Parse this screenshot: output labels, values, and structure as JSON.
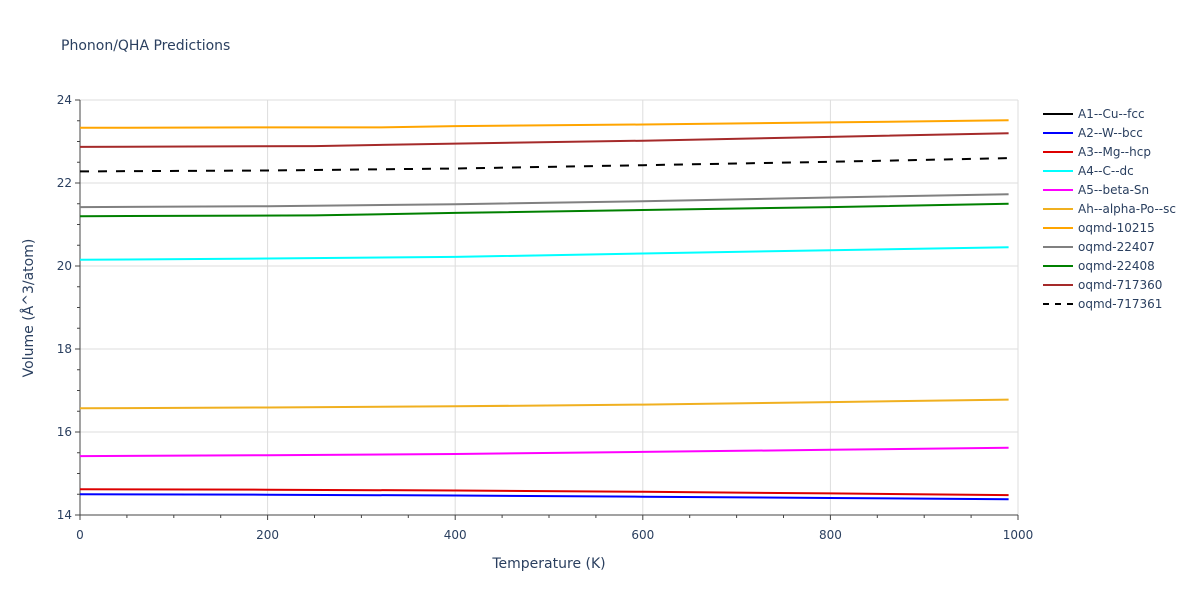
{
  "chart_data": {
    "type": "line",
    "title": "Phonon/QHA Predictions",
    "xlabel": "Temperature (K)",
    "ylabel": "Volume (Å^3/atom)",
    "xlim": [
      0,
      1000
    ],
    "ylim": [
      14,
      24
    ],
    "xticks": [
      0,
      200,
      400,
      600,
      800,
      1000
    ],
    "yticks": [
      14,
      16,
      18,
      20,
      22,
      24
    ],
    "grid": true,
    "legend_position": "right",
    "series": [
      {
        "name": "A1--Cu--fcc",
        "color": "#000000",
        "dash": "solid",
        "x": [],
        "y": []
      },
      {
        "name": "A2--W--bcc",
        "color": "#0000ff",
        "dash": "solid",
        "x": [
          0,
          200,
          400,
          600,
          800,
          990
        ],
        "y": [
          14.5,
          14.49,
          14.47,
          14.44,
          14.41,
          14.38
        ]
      },
      {
        "name": "A3--Mg--hcp",
        "color": "#dd0000",
        "dash": "solid",
        "x": [
          0,
          200,
          400,
          600,
          800,
          990
        ],
        "y": [
          14.62,
          14.61,
          14.59,
          14.56,
          14.52,
          14.48
        ]
      },
      {
        "name": "A4--C--dc",
        "color": "#00ffff",
        "dash": "solid",
        "x": [
          0,
          200,
          400,
          600,
          800,
          990
        ],
        "y": [
          20.15,
          20.18,
          20.22,
          20.3,
          20.38,
          20.45
        ]
      },
      {
        "name": "A5--beta-Sn",
        "color": "#ff00ff",
        "dash": "solid",
        "x": [
          0,
          200,
          400,
          600,
          800,
          990
        ],
        "y": [
          15.42,
          15.44,
          15.47,
          15.52,
          15.57,
          15.62
        ]
      },
      {
        "name": "Ah--alpha-Po--sc",
        "color": "#f0b020",
        "dash": "solid",
        "x": [
          0,
          200,
          400,
          600,
          800,
          990
        ],
        "y": [
          16.57,
          16.59,
          16.62,
          16.66,
          16.72,
          16.78
        ]
      },
      {
        "name": "oqmd-10215",
        "color": "#ffa500",
        "dash": "solid",
        "x": [
          0,
          200,
          320,
          400,
          600,
          800,
          990
        ],
        "y": [
          23.33,
          23.34,
          23.34,
          23.37,
          23.41,
          23.46,
          23.51
        ]
      },
      {
        "name": "oqmd-22407",
        "color": "#808080",
        "dash": "solid",
        "x": [
          0,
          200,
          400,
          600,
          800,
          990
        ],
        "y": [
          21.42,
          21.44,
          21.49,
          21.56,
          21.65,
          21.73
        ]
      },
      {
        "name": "oqmd-22408",
        "color": "#008000",
        "dash": "solid",
        "x": [
          0,
          250,
          400,
          600,
          800,
          990
        ],
        "y": [
          21.2,
          21.22,
          21.28,
          21.35,
          21.42,
          21.5
        ]
      },
      {
        "name": "oqmd-717360",
        "color": "#a52a2a",
        "dash": "solid",
        "x": [
          0,
          250,
          400,
          600,
          800,
          990
        ],
        "y": [
          22.87,
          22.89,
          22.95,
          23.02,
          23.11,
          23.2
        ]
      },
      {
        "name": "oqmd-717361",
        "color": "#000000",
        "dash": "dash",
        "x": [
          0,
          200,
          400,
          600,
          800,
          990
        ],
        "y": [
          22.28,
          22.3,
          22.35,
          22.43,
          22.51,
          22.6
        ]
      }
    ]
  }
}
